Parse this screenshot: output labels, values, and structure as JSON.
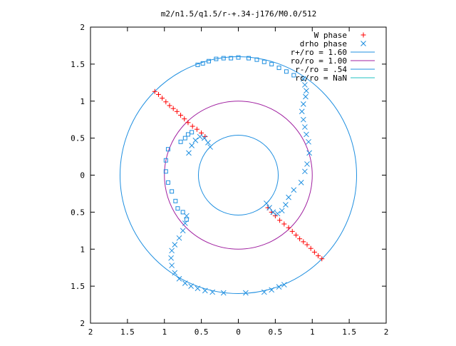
{
  "chart_data": {
    "type": "scatter",
    "title": "m2/n1.5/q1.5/r-+.34-j176/M0.0/512",
    "xlabel": "",
    "ylabel": "",
    "xlim": [
      -2,
      2
    ],
    "ylim": [
      -2,
      2
    ],
    "x_ticks": [
      -2,
      -1.5,
      -1,
      -0.5,
      0,
      0.5,
      1,
      1.5,
      2
    ],
    "y_ticks": [
      -2,
      -1.5,
      -1,
      -0.5,
      0,
      0.5,
      1,
      1.5,
      2
    ],
    "x_tick_labels": [
      "2",
      "1.5",
      "1",
      "0.5",
      "0",
      "0.5",
      "1",
      "1.5",
      "2"
    ],
    "y_tick_labels": [
      "2",
      "1.5",
      "1",
      "0.5",
      "0",
      "0.5",
      "1",
      "1.5",
      "2"
    ],
    "grid": false,
    "legend_position": "top-right",
    "series": [
      {
        "name": "W phase",
        "marker": "plus",
        "color": "#ff0000",
        "points": [
          [
            -1.13,
            1.13
          ],
          [
            -1.08,
            1.09
          ],
          [
            -1.03,
            1.04
          ],
          [
            -0.98,
            0.99
          ],
          [
            -0.93,
            0.94
          ],
          [
            -0.88,
            0.9
          ],
          [
            -0.83,
            0.86
          ],
          [
            -0.78,
            0.81
          ],
          [
            -0.73,
            0.76
          ],
          [
            -0.68,
            0.71
          ],
          [
            -0.62,
            0.66
          ],
          [
            -0.56,
            0.62
          ],
          [
            -0.5,
            0.57
          ],
          [
            -0.45,
            0.52
          ],
          [
            1.13,
            -1.13
          ],
          [
            1.08,
            -1.09
          ],
          [
            1.03,
            -1.04
          ],
          [
            0.98,
            -0.99
          ],
          [
            0.93,
            -0.94
          ],
          [
            0.88,
            -0.9
          ],
          [
            0.83,
            -0.86
          ],
          [
            0.78,
            -0.81
          ],
          [
            0.73,
            -0.76
          ],
          [
            0.68,
            -0.71
          ],
          [
            0.62,
            -0.66
          ],
          [
            0.56,
            -0.61
          ],
          [
            0.5,
            -0.55
          ],
          [
            0.45,
            -0.5
          ],
          [
            0.4,
            -0.44
          ]
        ]
      },
      {
        "name": "drho phase",
        "marker": "cross",
        "color": "#1f8fe0",
        "points": [
          [
            -0.38,
            0.38
          ],
          [
            -0.41,
            0.44
          ],
          [
            -0.46,
            0.5
          ],
          [
            -0.52,
            0.52
          ],
          [
            -0.58,
            0.47
          ],
          [
            -0.63,
            0.4
          ],
          [
            -0.67,
            0.3
          ],
          [
            -0.7,
            -0.55
          ],
          [
            -0.72,
            -0.65
          ],
          [
            -0.75,
            -0.75
          ],
          [
            -0.8,
            -0.85
          ],
          [
            -0.86,
            -0.94
          ],
          [
            -0.9,
            -1.02
          ],
          [
            -0.91,
            -1.12
          ],
          [
            -0.9,
            -1.22
          ],
          [
            -0.86,
            -1.32
          ],
          [
            -0.8,
            -1.4
          ],
          [
            -0.72,
            -1.46
          ],
          [
            -0.64,
            -1.5
          ],
          [
            -0.55,
            -1.53
          ],
          [
            -0.45,
            -1.56
          ],
          [
            -0.35,
            -1.58
          ],
          [
            -0.2,
            -1.59
          ],
          [
            0.1,
            -1.59
          ],
          [
            0.35,
            -1.58
          ],
          [
            0.45,
            -1.55
          ],
          [
            0.55,
            -1.51
          ],
          [
            0.62,
            -1.48
          ],
          [
            0.38,
            -0.38
          ],
          [
            0.42,
            -0.44
          ],
          [
            0.47,
            -0.5
          ],
          [
            0.53,
            -0.52
          ],
          [
            0.59,
            -0.48
          ],
          [
            0.64,
            -0.4
          ],
          [
            0.68,
            -0.3
          ],
          [
            0.75,
            -0.2
          ],
          [
            0.85,
            -0.1
          ],
          [
            0.9,
            0.05
          ],
          [
            0.93,
            0.15
          ],
          [
            0.96,
            0.3
          ],
          [
            0.95,
            0.45
          ],
          [
            0.92,
            0.55
          ],
          [
            0.9,
            0.65
          ],
          [
            0.88,
            0.75
          ],
          [
            0.86,
            0.86
          ],
          [
            0.88,
            0.96
          ],
          [
            0.91,
            1.06
          ],
          [
            0.92,
            1.14
          ],
          [
            0.9,
            1.22
          ],
          [
            0.88,
            1.3
          ]
        ]
      },
      {
        "name": "r+/ro = 1.60",
        "marker": "square",
        "color": "#1f8fe0",
        "points": [
          [
            -0.55,
            1.49
          ],
          [
            -0.48,
            1.51
          ],
          [
            -0.4,
            1.54
          ],
          [
            -0.3,
            1.57
          ],
          [
            -0.2,
            1.58
          ],
          [
            -0.1,
            1.58
          ],
          [
            0.0,
            1.59
          ],
          [
            0.14,
            1.58
          ],
          [
            0.25,
            1.56
          ],
          [
            0.35,
            1.53
          ],
          [
            0.45,
            1.5
          ],
          [
            0.55,
            1.45
          ],
          [
            0.65,
            1.4
          ],
          [
            0.75,
            1.35
          ],
          [
            -0.95,
            0.35
          ],
          [
            -0.98,
            0.2
          ],
          [
            -0.98,
            0.05
          ],
          [
            -0.95,
            -0.1
          ],
          [
            -0.9,
            -0.22
          ],
          [
            -0.85,
            -0.35
          ],
          [
            -0.82,
            -0.45
          ],
          [
            -0.75,
            -0.5
          ],
          [
            -0.7,
            -0.6
          ],
          [
            -0.78,
            0.45
          ],
          [
            -0.72,
            0.5
          ],
          [
            -0.68,
            0.55
          ],
          [
            -0.63,
            0.58
          ]
        ]
      }
    ],
    "circles": [
      {
        "name": "r+/ro = 1.60",
        "radius": 1.6,
        "color": "#1f8fe0"
      },
      {
        "name": "ro/ro = 1.00",
        "radius": 1.0,
        "color": "#a020a0"
      },
      {
        "name": "r-/ro = .54",
        "radius": 0.54,
        "color": "#1f8fe0"
      },
      {
        "name": "rc/ro = NaN",
        "radius": null,
        "color": "#20c0c0"
      }
    ],
    "legend": [
      {
        "label": "W phase",
        "kind": "plus",
        "color": "#ff0000"
      },
      {
        "label": "drho phase",
        "kind": "cross",
        "color": "#1f8fe0"
      },
      {
        "label": "r+/ro = 1.60",
        "kind": "line",
        "color": "#1f8fe0"
      },
      {
        "label": "ro/ro = 1.00",
        "kind": "line",
        "color": "#a020a0"
      },
      {
        "label": "r-/ro = .54",
        "kind": "line",
        "color": "#1f8fe0"
      },
      {
        "label": "rc/ro = NaN",
        "kind": "line",
        "color": "#20c0c0"
      }
    ]
  }
}
